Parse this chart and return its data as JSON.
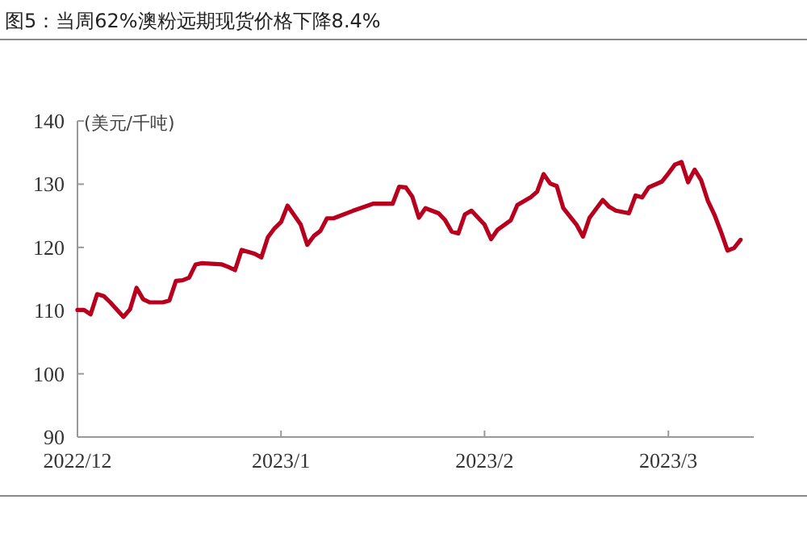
{
  "chart_data": {
    "type": "line",
    "title": "图5：当周62%澳粉远期现货价格下降8.4%",
    "ylabel": "(美元/千吨)",
    "xlim": [
      "2022-12-01",
      "2023-03-14"
    ],
    "ylim": [
      90,
      140
    ],
    "yticks": [
      90,
      100,
      110,
      120,
      130,
      140
    ],
    "xticks": [
      {
        "value": "2022-12-01",
        "label": "2022/12"
      },
      {
        "value": "2023-01-01",
        "label": "2023/1"
      },
      {
        "value": "2023-02-01",
        "label": "2023/2"
      },
      {
        "value": "2023-03-01",
        "label": "2023/3"
      }
    ],
    "grid": false,
    "marker": "none",
    "line_style": "solid",
    "x": [
      "2022-12-01",
      "2022-12-02",
      "2022-12-03",
      "2022-12-04",
      "2022-12-05",
      "2022-12-06",
      "2022-12-08",
      "2022-12-09",
      "2022-12-10",
      "2022-12-11",
      "2022-12-12",
      "2022-12-14",
      "2022-12-15",
      "2022-12-16",
      "2022-12-17",
      "2022-12-18",
      "2022-12-19",
      "2022-12-20",
      "2022-12-23",
      "2022-12-24",
      "2022-12-25",
      "2022-12-26",
      "2022-12-28",
      "2022-12-29",
      "2022-12-30",
      "2022-12-31",
      "2023-01-01",
      "2023-01-02",
      "2023-01-04",
      "2023-01-05",
      "2023-01-06",
      "2023-01-07",
      "2023-01-08",
      "2023-01-09",
      "2023-01-12",
      "2023-01-15",
      "2023-01-18",
      "2023-01-19",
      "2023-01-20",
      "2023-01-21",
      "2023-01-22",
      "2023-01-23",
      "2023-01-25",
      "2023-01-26",
      "2023-01-27",
      "2023-01-28",
      "2023-01-29",
      "2023-01-30",
      "2023-02-01",
      "2023-02-02",
      "2023-02-03",
      "2023-02-05",
      "2023-02-06",
      "2023-02-08",
      "2023-02-09",
      "2023-02-10",
      "2023-02-11",
      "2023-02-12",
      "2023-02-13",
      "2023-02-15",
      "2023-02-16",
      "2023-02-17",
      "2023-02-19",
      "2023-02-20",
      "2023-02-21",
      "2023-02-23",
      "2023-02-24",
      "2023-02-25",
      "2023-02-26",
      "2023-02-28",
      "2023-03-01",
      "2023-03-02",
      "2023-03-03",
      "2023-03-04",
      "2023-03-05",
      "2023-03-06",
      "2023-03-07",
      "2023-03-08",
      "2023-03-09",
      "2023-03-10",
      "2023-03-11",
      "2023-03-12"
    ],
    "series": [
      {
        "color": "#b8001e",
        "values": [
          110.1,
          110.1,
          109.4,
          112.6,
          112.3,
          111.3,
          109.0,
          110.2,
          113.6,
          111.8,
          111.3,
          111.3,
          111.6,
          114.7,
          114.8,
          115.2,
          117.3,
          117.5,
          117.3,
          116.9,
          116.4,
          119.6,
          119.0,
          118.4,
          121.6,
          123.0,
          124.0,
          126.6,
          123.6,
          120.4,
          121.8,
          122.6,
          124.6,
          124.6,
          125.8,
          126.9,
          126.9,
          129.6,
          129.5,
          128.0,
          124.7,
          126.2,
          125.4,
          124.3,
          122.5,
          122.2,
          125.2,
          125.8,
          123.6,
          121.3,
          122.8,
          124.3,
          126.7,
          127.9,
          128.8,
          131.6,
          130.1,
          129.7,
          126.2,
          123.6,
          121.7,
          124.7,
          127.5,
          126.4,
          125.8,
          125.4,
          128.2,
          127.9,
          129.5,
          130.4,
          131.7,
          133.1,
          133.5,
          130.3,
          132.3,
          130.6,
          127.4,
          125.2,
          122.5,
          119.5,
          119.9,
          121.2
        ]
      }
    ]
  }
}
